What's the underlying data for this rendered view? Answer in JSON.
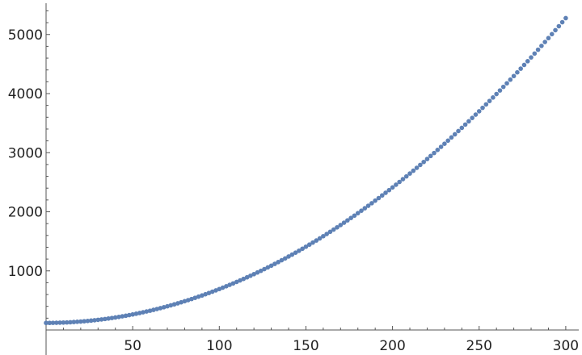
{
  "chart_data": {
    "type": "scatter",
    "title": "",
    "xlabel": "",
    "ylabel": "",
    "xlim": [
      0,
      305
    ],
    "ylim": [
      0,
      5450
    ],
    "grid": false,
    "color": "#5E81B5",
    "x_ticks": [
      50,
      100,
      150,
      200,
      250,
      300
    ],
    "x_tick_labels": [
      "50",
      "100",
      "150",
      "200",
      "250",
      "300"
    ],
    "y_ticks": [
      1000,
      2000,
      3000,
      4000,
      5000
    ],
    "y_tick_labels": [
      "1000",
      "2000",
      "3000",
      "4000",
      "5000"
    ],
    "x_start": 0,
    "x_step": 2,
    "y": [
      120,
      120,
      121,
      122,
      124,
      126,
      128,
      131,
      135,
      139,
      143,
      148,
      153,
      159,
      165,
      172,
      179,
      186,
      194,
      203,
      212,
      221,
      231,
      241,
      252,
      263,
      275,
      287,
      300,
      313,
      326,
      340,
      355,
      370,
      385,
      401,
      417,
      434,
      451,
      469,
      487,
      505,
      524,
      544,
      564,
      584,
      605,
      626,
      648,
      670,
      693,
      716,
      740,
      764,
      788,
      813,
      839,
      865,
      891,
      918,
      945,
      973,
      1001,
      1030,
      1059,
      1088,
      1118,
      1149,
      1180,
      1211,
      1243,
      1275,
      1308,
      1341,
      1375,
      1409,
      1444,
      1479,
      1514,
      1550,
      1587,
      1624,
      1661,
      1699,
      1737,
      1776,
      1815,
      1855,
      1895,
      1935,
      1977,
      2018,
      2060,
      2102,
      2145,
      2189,
      2232,
      2277,
      2321,
      2366,
      2412,
      2458,
      2505,
      2552,
      2599,
      2647,
      2695,
      2744,
      2793,
      2843,
      2893,
      2944,
      2995,
      3047,
      3099,
      3151,
      3204,
      3258,
      3311,
      3366,
      3420,
      3476,
      3531,
      3588,
      3644,
      3701,
      3759,
      3817,
      3875,
      3934,
      3993,
      4053,
      4114,
      4174,
      4236,
      4297,
      4359,
      4422,
      4485,
      4548,
      4612,
      4677,
      4742,
      4807,
      4873,
      4939,
      5006,
      5073,
      5140,
      5208,
      5277
    ]
  }
}
